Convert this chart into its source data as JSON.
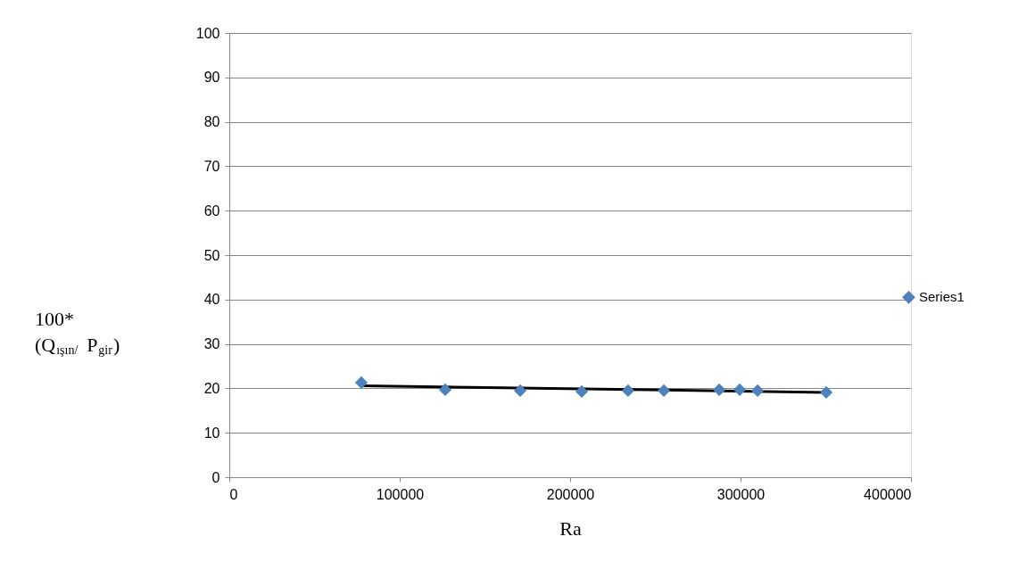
{
  "chart_data": {
    "type": "scatter",
    "xlabel": "Ra",
    "ylabel": "100*\n(Q$_{ışın/}$ P$_{gir}$)",
    "xlim": [
      0,
      400000
    ],
    "xticks": [
      0,
      100000,
      200000,
      300000,
      400000
    ],
    "ylim": [
      0,
      100
    ],
    "yticks": [
      0,
      10,
      20,
      30,
      40,
      50,
      60,
      70,
      80,
      90,
      100
    ],
    "grid": "y",
    "legend": "right",
    "marker": "diamond",
    "series": [
      {
        "name": "Series1",
        "color": "#4f81bd",
        "x": [
          77500,
          126700,
          170700,
          206800,
          234000,
          255000,
          287500,
          299500,
          310000,
          350300
        ],
        "values": [
          21.3,
          19.7,
          19.5,
          19.3,
          19.5,
          19.5,
          19.7,
          19.7,
          19.5,
          19.1
        ]
      },
      {
        "type": "line",
        "color": "#000000",
        "marker": "none",
        "x": [
          77500,
          350000
        ],
        "values": [
          20.6,
          19.1
        ]
      }
    ]
  }
}
